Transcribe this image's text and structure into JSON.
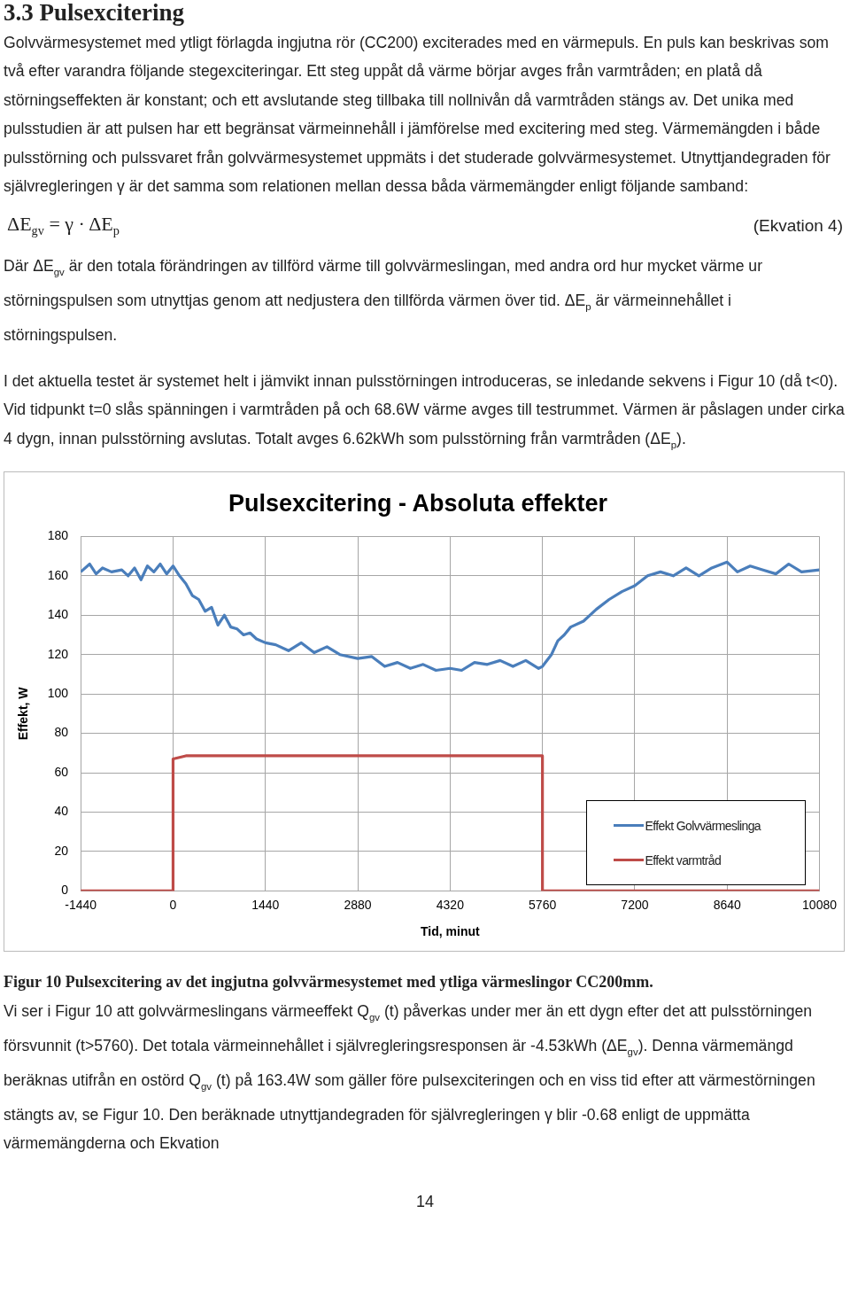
{
  "chart_data": {
    "type": "line",
    "title": "Pulsexcitering - Absoluta effekter",
    "xlabel": "Tid, minut",
    "ylabel": "Effekt, W",
    "xlim": [
      -1440,
      10080
    ],
    "xticks": [
      -1440,
      0,
      1440,
      2880,
      4320,
      5760,
      7200,
      8640,
      10080
    ],
    "ylim": [
      0,
      180
    ],
    "yticks": [
      0,
      20,
      40,
      60,
      80,
      100,
      120,
      140,
      160,
      180
    ],
    "grid": true,
    "legend": "bottom right",
    "series": [
      {
        "name": "Effekt Golvvärmeslinga",
        "color": "#4a7ebb",
        "x": [
          -1440,
          -1300,
          -1200,
          -1100,
          -960,
          -800,
          -700,
          -600,
          -500,
          -400,
          -300,
          -200,
          -100,
          0,
          100,
          200,
          300,
          400,
          500,
          600,
          700,
          800,
          900,
          1000,
          1100,
          1200,
          1300,
          1440,
          1600,
          1800,
          2000,
          2200,
          2400,
          2600,
          2880,
          3100,
          3300,
          3500,
          3700,
          3900,
          4100,
          4320,
          4500,
          4700,
          4900,
          5100,
          5300,
          5500,
          5700,
          5760,
          5900,
          6000,
          6100,
          6200,
          6400,
          6600,
          6800,
          7000,
          7200,
          7400,
          7600,
          7800,
          8000,
          8200,
          8400,
          8640,
          8800,
          9000,
          9200,
          9400,
          9600,
          9800,
          10080
        ],
        "values": [
          162,
          166,
          161,
          164,
          162,
          163,
          160,
          164,
          158,
          165,
          162,
          166,
          161,
          165,
          160,
          156,
          150,
          148,
          142,
          144,
          135,
          140,
          134,
          133,
          130,
          131,
          128,
          126,
          125,
          122,
          126,
          121,
          124,
          120,
          118,
          119,
          114,
          116,
          113,
          115,
          112,
          113,
          112,
          116,
          115,
          117,
          114,
          117,
          113,
          114,
          120,
          127,
          130,
          134,
          137,
          143,
          148,
          152,
          155,
          160,
          162,
          160,
          164,
          160,
          164,
          167,
          162,
          165,
          163,
          161,
          166,
          162,
          163
        ]
      },
      {
        "name": "Effekt varmtråd",
        "color": "#be4b48",
        "x": [
          -1440,
          0,
          0,
          200,
          5760,
          5760,
          10080
        ],
        "values": [
          0,
          0,
          67,
          68.6,
          68.6,
          0,
          0
        ]
      }
    ],
    "annotations": [
      "3.3 Pulsexcitering",
      "Golvvärmesystemet med ytligt förlagda ingjutna rör (CC200) exciterades med en värmepuls. En puls kan beskrivas som två efter varandra följande stegexciteringar. Ett steg uppåt då värme börjar avges från varmtråden; en platå då störningseffekten är konstant; och ett avslutande steg tillbaka till nollnivån då varmtråden stängs av. Det unika med pulsstudien är att pulsen har ett begränsat värmeinnehåll i jämförelse med excitering med steg. Värmemängden i både pulsstörning och pulssvaret från golvvärmesystemet uppmäts i det studerade golvvärmesystemet. Utnyttjandegraden för självregleringen γ är det samma som relationen mellan dessa båda värmemängder enligt följande samband:",
      "ΔE$_{gv}$ = γ · ΔE$_{p}$",
      "(Ekvation 4)",
      "Där ΔE$_{gv}$ är den totala förändringen av tillförd värme till golvvärmeslingan, med andra ord hur mycket värme ur störningspulsen som utnyttjas genom att nedjustera den tillförda värmen över tid. ΔE$_{p}$ är värmeinnehållet i störningspulsen.",
      "I det aktuella testet är systemet helt i jämvikt innan pulsstörningen introduceras, se inledande sekvens i Figur 10 (då t<0). Vid tidpunkt t=0 slås spänningen i varmtråden på och 68.6W värme avges till testrummet. Värmen är påslagen under cirka 4 dygn, innan pulsstörning avslutas. Totalt avges 6.62kWh som pulsstörning från varmtråden (ΔE$_{p}$).",
      "Figur 10 Pulsexcitering av det ingjutna golvvärmesystemet med ytliga värmeslingor CC200mm.",
      "Vi ser i Figur 10 att golvvärmeslingans värmeeffekt Q$_{gv}$ (t) påverkas under mer än ett dygn efter det att pulsstörningen försvunnit (t>5760). Det totala värmeinnehållet i självregleringsresponsen är -4.53kWh (ΔE$_{gv}$). Denna värmemängd beräknas utifrån en ostörd Q$_{gv}$ (t) på 163.4W som gäller före pulsexciteringen och en viss tid efter att värmestörningen stängts av, se Figur 10. Den beräknade utnyttjandegraden för självregleringen γ blir -0.68 enligt de uppmätta värmemängderna och Ekvation",
      "14"
    ]
  }
}
